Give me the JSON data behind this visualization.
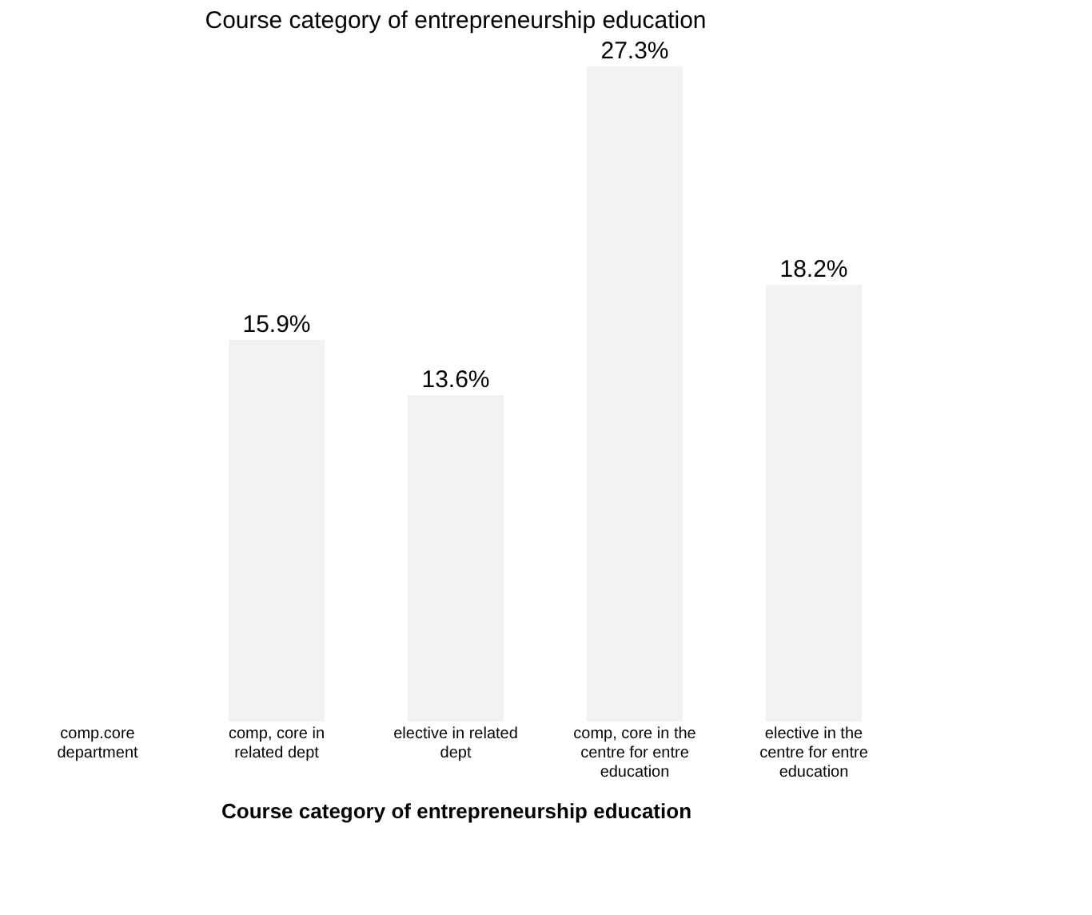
{
  "chart_data": {
    "type": "bar",
    "title": "Course category of entrepreneurship education",
    "xlabel": "Course category of entrepreneurship education",
    "categories": [
      "comp.core department",
      "comp, core in related dept",
      "elective in related dept",
      "comp, core in the centre for entre education",
      "elective in the centre for entre education"
    ],
    "values": [
      null,
      15.9,
      13.6,
      27.3,
      18.2
    ],
    "value_labels": [
      null,
      "15.9%",
      "13.6%",
      "27.3%",
      "18.2%"
    ],
    "color": "#f2f2f2",
    "tick_labels": "x"
  }
}
